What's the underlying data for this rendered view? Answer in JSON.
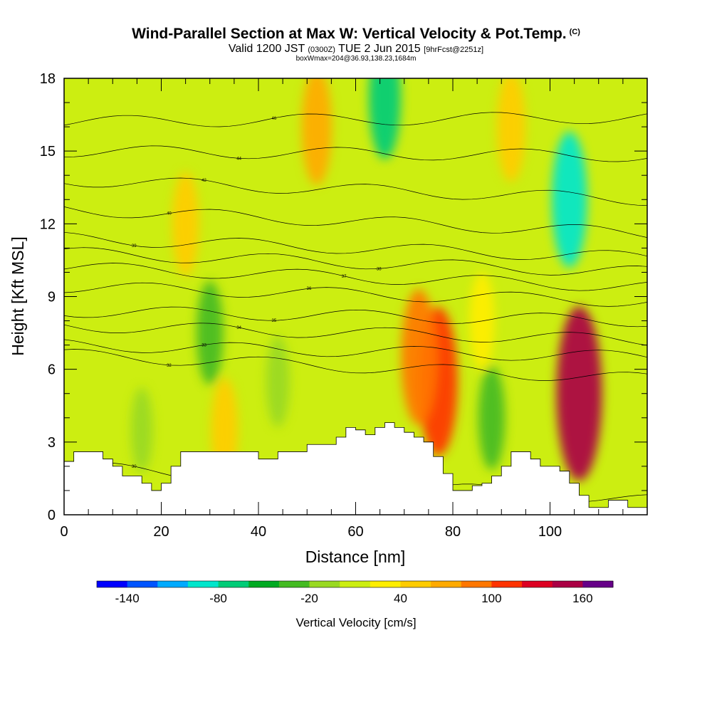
{
  "chart_data": {
    "type": "heatmap",
    "title": "Wind-Parallel Section at Max W: Vertical Velocity & Pot.Temp.",
    "title_mark": "(C)",
    "subtitle_main": "Valid 1200 JST",
    "subtitle_utc": "(0300Z)",
    "subtitle_date": "TUE 2 Jun 2015",
    "subtitle_fcst": "[9hrFcst@2251z]",
    "subsubtitle": "boxWmax=204@36.93,138.23,1684m",
    "xlabel": "Distance [nm]",
    "ylabel": "Height [Kft MSL]",
    "xlim": [
      0,
      120
    ],
    "ylim": [
      0,
      18
    ],
    "xticks": [
      "0",
      "20",
      "40",
      "60",
      "80",
      "100"
    ],
    "yticks": [
      "0",
      "3",
      "6",
      "9",
      "12",
      "15",
      "18"
    ],
    "colorbar": {
      "label": "Vertical Velocity [cm/s]",
      "tick_labels": [
        "-140",
        "-80",
        "-20",
        "40",
        "100",
        "160"
      ],
      "tick_values": [
        -140,
        -80,
        -20,
        40,
        100,
        160
      ],
      "range": [
        -160,
        180
      ],
      "colors": [
        "#0000ff",
        "#0055ff",
        "#00aaff",
        "#00e6cc",
        "#00cc77",
        "#00aa22",
        "#44bb22",
        "#99d922",
        "#ccee11",
        "#ffee00",
        "#ffcc00",
        "#ffaa00",
        "#ff7700",
        "#ff3300",
        "#dd0022",
        "#aa0044",
        "#660088"
      ]
    },
    "velocity_features": [
      {
        "x": 25,
        "y": 12,
        "value": 40
      },
      {
        "x": 33,
        "y": 3.5,
        "value": 40
      },
      {
        "x": 52,
        "y": 16,
        "value": 60
      },
      {
        "x": 77,
        "y": 5.5,
        "value": 110
      },
      {
        "x": 73,
        "y": 6.5,
        "value": 90
      },
      {
        "x": 106,
        "y": 5,
        "value": 150
      },
      {
        "x": 92,
        "y": 16,
        "value": 50
      },
      {
        "x": 104,
        "y": 13,
        "value": -90
      },
      {
        "x": 66,
        "y": 17.2,
        "value": -70
      },
      {
        "x": 30,
        "y": 7.5,
        "value": -40
      },
      {
        "x": 88,
        "y": 4,
        "value": -40
      },
      {
        "x": 44,
        "y": 5.5,
        "value": -20
      },
      {
        "x": 16,
        "y": 3.5,
        "value": -10
      },
      {
        "x": 86,
        "y": 8,
        "value": 30
      }
    ],
    "theta_contours": [
      {
        "label": "30",
        "y0": 2.0,
        "y1": 0.6
      },
      {
        "label": "32",
        "y0": 6.6,
        "y1": 5.6
      },
      {
        "label": "33",
        "y0": 7.0,
        "y1": 6.5
      },
      {
        "label": "34",
        "y0": 7.8,
        "y1": 7.2
      },
      {
        "label": "35",
        "y0": 8.4,
        "y1": 8.0
      },
      {
        "label": "36",
        "y0": 9.4,
        "y1": 8.8
      },
      {
        "label": "37",
        "y0": 10.2,
        "y1": 9.4
      },
      {
        "label": "38",
        "y0": 10.8,
        "y1": 10.0
      },
      {
        "label": "39",
        "y0": 11.4,
        "y1": 10.6
      },
      {
        "label": "40",
        "y0": 12.6,
        "y1": 11.6
      },
      {
        "label": "42",
        "y0": 13.8,
        "y1": 13.0
      },
      {
        "label": "44",
        "y0": 15.0,
        "y1": 14.8
      },
      {
        "label": "46",
        "y0": 16.2,
        "y1": 16.4
      }
    ],
    "terrain": {
      "x": [
        0,
        2,
        4,
        6,
        8,
        10,
        12,
        14,
        16,
        18,
        20,
        22,
        24,
        26,
        28,
        30,
        34,
        38,
        40,
        42,
        44,
        46,
        48,
        50,
        52,
        54,
        56,
        58,
        60,
        62,
        64,
        66,
        68,
        70,
        72,
        74,
        76,
        78,
        80,
        82,
        84,
        86,
        88,
        90,
        92,
        94,
        96,
        98,
        100,
        102,
        104,
        106,
        108,
        110,
        112,
        114,
        116,
        118,
        120
      ],
      "y": [
        2.2,
        2.6,
        2.6,
        2.6,
        2.3,
        2.0,
        1.6,
        1.6,
        1.3,
        1.0,
        1.3,
        2.0,
        2.6,
        2.6,
        2.6,
        2.6,
        2.6,
        2.6,
        2.3,
        2.3,
        2.6,
        2.6,
        2.6,
        2.9,
        2.9,
        2.9,
        3.2,
        3.6,
        3.5,
        3.3,
        3.6,
        3.8,
        3.6,
        3.4,
        3.2,
        3.0,
        2.4,
        1.7,
        1.0,
        1.0,
        1.2,
        1.3,
        1.6,
        2.0,
        2.6,
        2.6,
        2.3,
        2.0,
        2.0,
        1.8,
        1.3,
        0.8,
        0.3,
        0.3,
        0.6,
        0.6,
        0.3,
        0.3,
        0.3
      ]
    }
  }
}
